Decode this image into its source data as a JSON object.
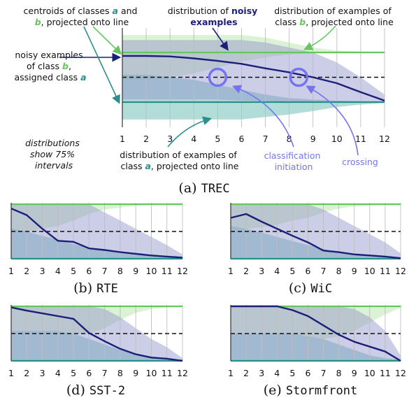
{
  "colors": {
    "class_a": "#2a8f8a",
    "class_a_fill": "#7fc4bd",
    "class_b": "#66c75e",
    "class_b_fill": "#bfe8b2",
    "noisy": "#1b1f78",
    "noisy_fill": "#8f90c9",
    "highlight": "#7474f0",
    "midline": "#111111"
  },
  "annotations": {
    "centroids": {
      "line1_pre": "centroids of classes ",
      "line1_a": "a",
      "line1_post": " and",
      "line2_b": "b",
      "line2_post": ", projected onto line"
    },
    "noisy_dist": {
      "line1_pre": "distribution of ",
      "line1_bold": "noisy",
      "line2_bold": "examples"
    },
    "b_dist": {
      "line1": "distribution of examples of",
      "line2_pre": "class ",
      "line2_b": "b",
      "line2_post": ", projected onto line"
    },
    "noisy_examples": {
      "line1": "noisy examples",
      "line2_pre": "of class ",
      "line2_b": "b",
      "line2_post": ",",
      "line3_pre": "assigned class ",
      "line3_a": "a"
    },
    "intervals": {
      "line1": "distributions",
      "line2": "show 75%",
      "line3": "intervals"
    },
    "a_dist": {
      "line1": "distribution of examples of",
      "line2_pre": "class ",
      "line2_a": "a",
      "line2_post": ", projected onto line"
    },
    "classification": {
      "line1": "classification",
      "line2": "initiation"
    },
    "crossing": "crossing"
  },
  "chart_data": [
    {
      "panel": "a",
      "caption_prefix": "(a) ",
      "caption_name": "TREC",
      "type": "area",
      "x": [
        1,
        2,
        3,
        4,
        5,
        6,
        7,
        8,
        9,
        10,
        11,
        12
      ],
      "xticks": [
        "1",
        "2",
        "3",
        "4",
        "5",
        "6",
        "7",
        "8",
        "9",
        "10",
        "11",
        "12"
      ],
      "ylim": [
        0,
        1
      ],
      "series": [
        {
          "key": "class_b_centroid",
          "values": [
            1,
            1,
            1,
            1,
            1,
            1,
            1,
            1,
            1,
            1,
            1,
            1
          ],
          "band_low": [
            0.45,
            0.45,
            0.5,
            0.58,
            0.7,
            0.82,
            0.9,
            0.96,
            0.98,
            0.99,
            0.99,
            1.0
          ],
          "band_high": [
            1.35,
            1.35,
            1.35,
            1.35,
            1.35,
            1.35,
            1.3,
            1.2,
            1.1,
            1.04,
            1.02,
            1.01
          ]
        },
        {
          "key": "class_a_centroid",
          "values": [
            0,
            0,
            0,
            0,
            0,
            0,
            0,
            0,
            0,
            0,
            0,
            0
          ],
          "band_low": [
            -0.35,
            -0.35,
            -0.35,
            -0.35,
            -0.35,
            -0.35,
            -0.3,
            -0.25,
            -0.18,
            -0.1,
            -0.05,
            -0.02
          ],
          "band_high": [
            0.55,
            0.55,
            0.5,
            0.45,
            0.35,
            0.25,
            0.15,
            0.08,
            0.05,
            0.03,
            0.02,
            0.01
          ]
        },
        {
          "key": "noisy_examples",
          "values": [
            0.93,
            0.93,
            0.92,
            0.88,
            0.83,
            0.77,
            0.68,
            0.6,
            0.5,
            0.38,
            0.2,
            0.03
          ],
          "band_low": [
            0.05,
            0.05,
            0.05,
            0.05,
            0.05,
            0.03,
            0.02,
            0.0,
            0.0,
            0.0,
            0.0,
            0.0
          ],
          "band_high": [
            1.25,
            1.25,
            1.25,
            1.25,
            1.25,
            1.25,
            1.2,
            1.1,
            1.0,
            0.8,
            0.5,
            0.15
          ]
        }
      ],
      "midline": 0.5,
      "highlights": [
        {
          "x": 5,
          "y": 0.5
        },
        {
          "x": 8.4,
          "y": 0.5
        }
      ]
    },
    {
      "panel": "b",
      "caption_prefix": "(b) ",
      "caption_name": "RTE",
      "type": "area",
      "x": [
        1,
        2,
        3,
        4,
        5,
        6,
        7,
        8,
        9,
        10,
        11,
        12
      ],
      "xticks": [
        "1",
        "2",
        "3",
        "4",
        "5",
        "6",
        "7",
        "8",
        "9",
        "10",
        "11",
        "12"
      ],
      "ylim": [
        0,
        1
      ],
      "series": [
        {
          "key": "class_b_centroid",
          "values": [
            1,
            1,
            1,
            1,
            1,
            1,
            1,
            1,
            1,
            1,
            1,
            1
          ],
          "band_low": [
            0.5,
            0.5,
            0.55,
            0.6,
            0.7,
            0.82,
            0.9,
            0.94,
            0.97,
            0.99,
            0.99,
            1.0
          ],
          "band_high": [
            1,
            1,
            1,
            1,
            1,
            1,
            1,
            1,
            1,
            1,
            1,
            1
          ]
        },
        {
          "key": "class_a_centroid",
          "values": [
            0,
            0,
            0,
            0,
            0,
            0,
            0,
            0,
            0,
            0,
            0,
            0
          ],
          "band_low": [
            0,
            0,
            0,
            0,
            0,
            0,
            0,
            0,
            0,
            0,
            0,
            0
          ],
          "band_high": [
            0.55,
            0.5,
            0.42,
            0.35,
            0.27,
            0.2,
            0.14,
            0.1,
            0.07,
            0.05,
            0.03,
            0.02
          ]
        },
        {
          "key": "noisy_examples",
          "values": [
            0.92,
            0.8,
            0.55,
            0.33,
            0.31,
            0.19,
            0.16,
            0.12,
            0.09,
            0.06,
            0.04,
            0.02
          ],
          "band_low": [
            0,
            0,
            0,
            0,
            0,
            0,
            0,
            0,
            0,
            0,
            0,
            0
          ],
          "band_high": [
            1,
            1,
            1,
            1,
            1,
            1,
            0.85,
            0.7,
            0.55,
            0.4,
            0.25,
            0.08
          ]
        }
      ],
      "midline": 0.5
    },
    {
      "panel": "c",
      "caption_prefix": "(c) ",
      "caption_name": "WiC",
      "type": "area",
      "x": [
        1,
        2,
        3,
        4,
        5,
        6,
        7,
        8,
        9,
        10,
        11,
        12
      ],
      "xticks": [
        "1",
        "2",
        "3",
        "4",
        "5",
        "6",
        "7",
        "8",
        "9",
        "10",
        "11",
        "12"
      ],
      "ylim": [
        0,
        1
      ],
      "series": [
        {
          "key": "class_b_centroid",
          "values": [
            1,
            1,
            1,
            1,
            1,
            1,
            1,
            1,
            1,
            1,
            1,
            1
          ],
          "band_low": [
            0.55,
            0.55,
            0.58,
            0.62,
            0.7,
            0.75,
            0.85,
            0.92,
            0.96,
            0.98,
            0.99,
            1.0
          ],
          "band_high": [
            1,
            1,
            1,
            1,
            1,
            1,
            1,
            1,
            1,
            1,
            1,
            1
          ]
        },
        {
          "key": "class_a_centroid",
          "values": [
            0,
            0,
            0,
            0,
            0,
            0,
            0,
            0,
            0,
            0,
            0,
            0
          ],
          "band_low": [
            0,
            0,
            0,
            0,
            0,
            0,
            0,
            0,
            0,
            0,
            0,
            0
          ],
          "band_high": [
            0.6,
            0.55,
            0.48,
            0.4,
            0.32,
            0.25,
            0.18,
            0.12,
            0.08,
            0.05,
            0.03,
            0.02
          ]
        },
        {
          "key": "noisy_examples",
          "values": [
            0.75,
            0.82,
            0.68,
            0.55,
            0.42,
            0.3,
            0.15,
            0.12,
            0.08,
            0.06,
            0.04,
            0.01
          ],
          "band_low": [
            0,
            0,
            0,
            0,
            0,
            0,
            0,
            0,
            0,
            0,
            0,
            0
          ],
          "band_high": [
            1,
            1,
            1,
            1,
            1,
            1,
            0.9,
            0.75,
            0.6,
            0.45,
            0.3,
            0.1
          ]
        }
      ],
      "midline": 0.5
    },
    {
      "panel": "d",
      "caption_prefix": "(d) ",
      "caption_name": "SST-2",
      "type": "area",
      "x": [
        1,
        2,
        3,
        4,
        5,
        6,
        7,
        8,
        9,
        10,
        11,
        12
      ],
      "xticks": [
        "1",
        "2",
        "3",
        "4",
        "5",
        "6",
        "7",
        "8",
        "9",
        "10",
        "11",
        "12"
      ],
      "ylim": [
        0,
        1
      ],
      "series": [
        {
          "key": "class_b_centroid",
          "values": [
            1,
            1,
            1,
            1,
            1,
            1,
            1,
            1,
            1,
            1,
            1,
            1
          ],
          "band_low": [
            0.55,
            0.55,
            0.55,
            0.55,
            0.5,
            0.5,
            0.6,
            0.75,
            0.88,
            0.95,
            0.98,
            1.0
          ],
          "band_high": [
            1,
            1,
            1,
            1,
            1,
            1,
            1,
            1,
            1,
            1,
            1,
            1
          ]
        },
        {
          "key": "class_a_centroid",
          "values": [
            0,
            0,
            0,
            0,
            0,
            0,
            0,
            0,
            0,
            0,
            0,
            0
          ],
          "band_low": [
            0,
            0,
            0,
            0,
            0,
            0,
            0,
            0,
            0,
            0,
            0,
            0
          ],
          "band_high": [
            0.55,
            0.55,
            0.55,
            0.55,
            0.5,
            0.4,
            0.3,
            0.2,
            0.12,
            0.08,
            0.05,
            0.02
          ]
        },
        {
          "key": "noisy_examples",
          "values": [
            0.98,
            0.92,
            0.87,
            0.82,
            0.77,
            0.51,
            0.36,
            0.22,
            0.12,
            0.06,
            0.04,
            0.0
          ],
          "band_low": [
            0,
            0,
            0,
            0,
            0,
            0,
            0,
            0,
            0,
            0,
            0,
            0
          ],
          "band_high": [
            1,
            1,
            1,
            1,
            1,
            1,
            0.95,
            0.8,
            0.6,
            0.4,
            0.25,
            0.05
          ]
        }
      ],
      "midline": 0.5
    },
    {
      "panel": "e",
      "caption_prefix": "(e) ",
      "caption_name": "Stormfront",
      "type": "area",
      "x": [
        1,
        2,
        3,
        4,
        5,
        6,
        7,
        8,
        9,
        10,
        11,
        12
      ],
      "xticks": [
        "1",
        "2",
        "3",
        "4",
        "5",
        "6",
        "7",
        "8",
        "9",
        "10",
        "11",
        "12"
      ],
      "ylim": [
        0,
        1
      ],
      "series": [
        {
          "key": "class_b_centroid",
          "values": [
            1,
            1,
            1,
            1,
            1,
            1,
            1,
            1,
            1,
            1,
            1,
            1
          ],
          "band_low": [
            0.5,
            0.5,
            0.5,
            0.5,
            0.5,
            0.45,
            0.4,
            0.45,
            0.55,
            0.7,
            0.85,
            0.97
          ],
          "band_high": [
            1,
            1,
            1,
            1,
            1,
            1,
            1,
            1,
            1,
            1,
            1,
            1
          ]
        },
        {
          "key": "class_a_centroid",
          "values": [
            0,
            0,
            0,
            0,
            0,
            0,
            0,
            0,
            0,
            0,
            0,
            0
          ],
          "band_low": [
            0,
            0,
            0,
            0,
            0,
            0,
            0,
            0,
            0,
            0,
            0,
            0
          ],
          "band_high": [
            0.5,
            0.5,
            0.5,
            0.5,
            0.5,
            0.45,
            0.4,
            0.3,
            0.2,
            0.1,
            0.05,
            0.02
          ]
        },
        {
          "key": "noisy_examples",
          "values": [
            1.0,
            1.0,
            1.0,
            1.0,
            0.93,
            0.82,
            0.65,
            0.48,
            0.35,
            0.26,
            0.17,
            0.0
          ],
          "band_low": [
            0,
            0,
            0,
            0,
            0,
            0,
            0,
            0,
            0,
            0,
            0,
            0
          ],
          "band_high": [
            1,
            1,
            1,
            1,
            1,
            1,
            1,
            1,
            0.95,
            0.8,
            0.55,
            0.1
          ]
        }
      ],
      "midline": 0.5
    }
  ]
}
